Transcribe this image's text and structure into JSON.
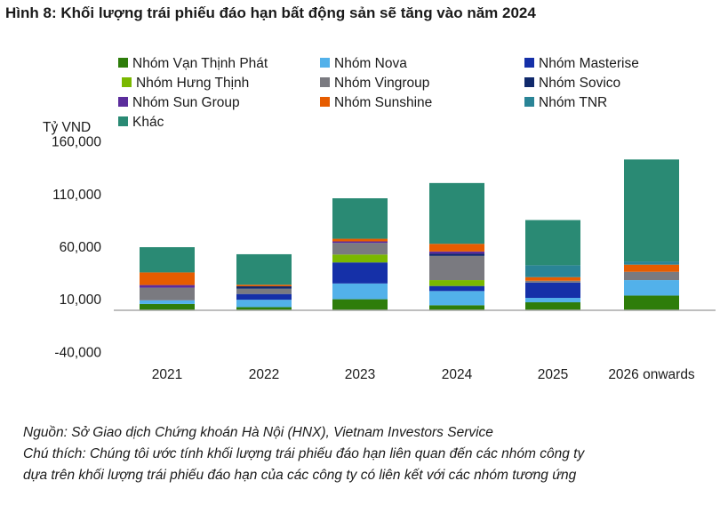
{
  "title": "Hình 8: Khối lượng trái phiếu đáo hạn bất động sản sẽ tăng vào năm 2024",
  "chart_data": {
    "type": "bar",
    "stacked": true,
    "ylabel": "Tỷ VND",
    "ylim": [
      -40000,
      160000
    ],
    "yticks": [
      "160,000",
      "110,000",
      "60,000",
      "10,000",
      "-40,000"
    ],
    "ytick_values": [
      160000,
      110000,
      60000,
      10000,
      -40000
    ],
    "categories": [
      "2021",
      "2022",
      "2023",
      "2024",
      "2025",
      "2026 onwards"
    ],
    "legend_position": "top",
    "series": [
      {
        "name": "Nhóm Vạn Thịnh Phát",
        "color": "#2e7d0a",
        "values": [
          6000,
          3000,
          10500,
          4800,
          7600,
          14000
        ]
      },
      {
        "name": "Nhóm Nova",
        "color": "#52b1ea",
        "values": [
          3500,
          7000,
          15000,
          13500,
          4200,
          14700
        ]
      },
      {
        "name": "Nhóm Masterise",
        "color": "#1530a8",
        "values": [
          0,
          5500,
          20000,
          4800,
          14600,
          0
        ]
      },
      {
        "name": "Nhóm Hưng Thịnh",
        "color": "#7ab800",
        "values": [
          0,
          0,
          7500,
          5600,
          0,
          0
        ]
      },
      {
        "name": "Nhóm Vingroup",
        "color": "#7a7a80",
        "values": [
          12000,
          5000,
          11000,
          23000,
          1700,
          7900
        ]
      },
      {
        "name": "Nhóm Sovico",
        "color": "#10296b",
        "values": [
          0,
          2300,
          0,
          2000,
          0,
          0
        ]
      },
      {
        "name": "Nhóm Sun Group",
        "color": "#5b2d9c",
        "values": [
          2500,
          0,
          1500,
          2200,
          0,
          0
        ]
      },
      {
        "name": "Nhóm Sunshine",
        "color": "#e65c00",
        "values": [
          12000,
          1500,
          2500,
          7300,
          3400,
          6800
        ]
      },
      {
        "name": "Nhóm TNR",
        "color": "#2a8496",
        "values": [
          0,
          0,
          0,
          0,
          11300,
          3000
        ]
      },
      {
        "name": "Khác",
        "color": "#2a8a74",
        "values": [
          24000,
          29000,
          38500,
          57800,
          43000,
          97000
        ]
      }
    ]
  },
  "notes": [
    "Nguồn: Sở Giao dịch Chứng khoán Hà Nội (HNX), Vietnam Investors Service",
    "Chú thích: Chúng tôi ước tính khối lượng trái phiếu đáo hạn liên quan đến các nhóm công ty",
    "dựa trên khối lượng trái phiếu đáo hạn của các công ty có liên kết với các nhóm tương ứng"
  ]
}
